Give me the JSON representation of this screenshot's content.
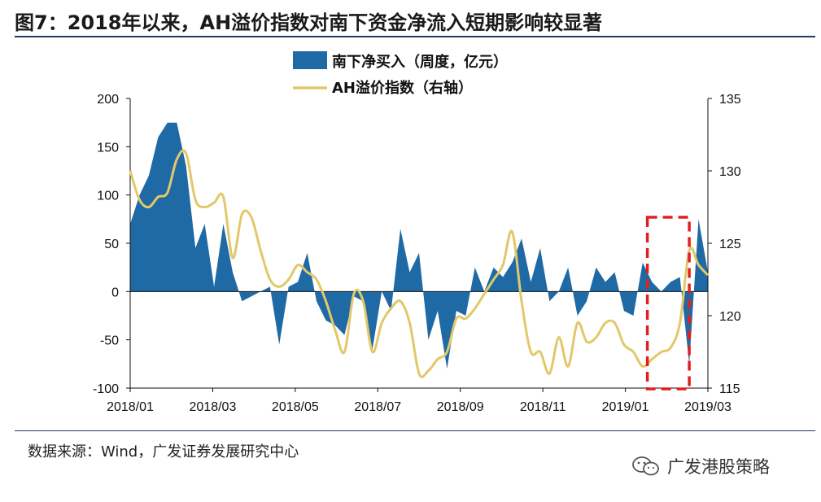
{
  "title": "图7：2018年以来，AH溢价指数对南下资金净流入短期影响较显著",
  "source": "数据来源：Wind，广发证券发展研究中心",
  "watermark": "广发港股策略",
  "colors": {
    "area": "#1f6aa5",
    "line": "#e2c86a",
    "highlight": "#e02020",
    "axis": "#111111"
  },
  "chart_data": {
    "type": "area+line",
    "legend": [
      "南下净买入（周度，亿元）",
      "AH溢价指数（右轴）"
    ],
    "x_tick_labels": [
      "2018/01",
      "2018/03",
      "2018/05",
      "2018/07",
      "2018/09",
      "2018/11",
      "2019/01",
      "2019/03"
    ],
    "y_left": {
      "ticks": [
        200,
        150,
        100,
        50,
        0,
        -50,
        -100
      ],
      "lim": [
        -100,
        200
      ]
    },
    "y_right": {
      "ticks": [
        135,
        130,
        125,
        120,
        115
      ],
      "lim": [
        115,
        135
      ]
    },
    "x_range_weeks": [
      0,
      62
    ],
    "series": [
      {
        "name": "南下净买入（周度，亿元）",
        "axis": "left",
        "style": "area",
        "x": [
          0,
          1,
          2,
          3,
          4,
          5,
          6,
          7,
          8,
          9,
          10,
          11,
          12,
          13,
          14,
          15,
          16,
          17,
          18,
          19,
          20,
          21,
          22,
          23,
          24,
          25,
          26,
          27,
          28,
          29,
          30,
          31,
          32,
          33,
          34,
          35,
          36,
          37,
          38,
          39,
          40,
          41,
          42,
          43,
          44,
          45,
          46,
          47,
          48,
          49,
          50,
          51,
          52,
          53,
          54,
          55,
          56,
          57,
          58,
          59,
          60,
          61,
          62
        ],
        "values": [
          70,
          100,
          120,
          160,
          175,
          175,
          130,
          45,
          70,
          5,
          70,
          20,
          -10,
          -5,
          0,
          5,
          -55,
          5,
          10,
          40,
          -10,
          -30,
          -35,
          -45,
          -5,
          -10,
          -60,
          0,
          -20,
          65,
          20,
          40,
          -50,
          -20,
          -80,
          -20,
          -25,
          25,
          0,
          25,
          15,
          30,
          55,
          10,
          45,
          -10,
          0,
          25,
          -25,
          -10,
          25,
          10,
          20,
          -20,
          -25,
          30,
          10,
          0,
          10,
          15,
          -75,
          75,
          20
        ]
      },
      {
        "name": "AH溢价指数（右轴）",
        "axis": "right",
        "style": "line",
        "x": [
          0,
          1,
          2,
          3,
          4,
          5,
          6,
          7,
          8,
          9,
          10,
          11,
          12,
          13,
          14,
          15,
          16,
          17,
          18,
          19,
          20,
          21,
          22,
          23,
          24,
          25,
          26,
          27,
          28,
          29,
          30,
          31,
          32,
          33,
          34,
          35,
          36,
          37,
          38,
          39,
          40,
          41,
          42,
          43,
          44,
          45,
          46,
          47,
          48,
          49,
          50,
          51,
          52,
          53,
          54,
          55,
          56,
          57,
          58,
          59,
          60,
          61,
          62
        ],
        "values": [
          130,
          128,
          127.5,
          128.2,
          128.5,
          130.8,
          131.2,
          128.0,
          127.5,
          127.8,
          128.2,
          124.0,
          127.0,
          126.8,
          124.5,
          122.5,
          122.0,
          122.5,
          123.5,
          123.0,
          122.5,
          121.0,
          119.0,
          117.5,
          121.5,
          121.0,
          117.5,
          119.5,
          120.5,
          121.0,
          119.5,
          116.0,
          116.2,
          117.0,
          117.5,
          119.8,
          119.8,
          120.5,
          121.5,
          122.5,
          123.5,
          125.8,
          121.0,
          117.5,
          117.5,
          116.0,
          118.5,
          116.5,
          119.5,
          118.2,
          118.5,
          119.5,
          119.5,
          118.0,
          117.5,
          116.5,
          117.0,
          117.5,
          117.8,
          119.5,
          124.5,
          123.5,
          122.8
        ]
      }
    ],
    "annotation": {
      "type": "dashed-box",
      "x_start_weeks": 55.5,
      "x_end_weeks": 60,
      "color": "#e02020"
    }
  }
}
